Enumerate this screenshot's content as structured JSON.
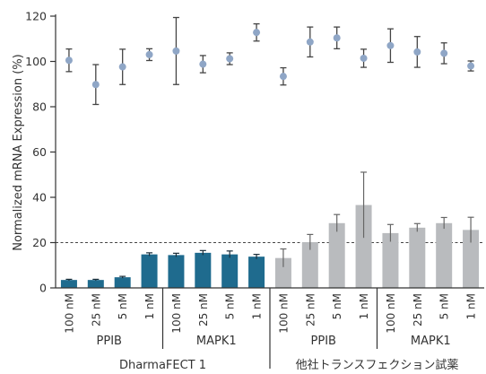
{
  "chart_data": {
    "type": "bar",
    "ylabel": "Normalized mRNA Expression (%)",
    "ylim": [
      0,
      120
    ],
    "yticks": [
      0,
      20,
      40,
      60,
      80,
      100,
      120
    ],
    "reference_line": 20,
    "grid": false,
    "colors": {
      "dharmafect_bar": "#1f6b8e",
      "other_bar": "#b9bbbe",
      "point": "#8fa6c6",
      "error": "#444444",
      "axis": "#333333"
    },
    "categories": [
      "100 nM",
      "25 nM",
      "5 nM",
      "1 nM",
      "100 nM",
      "25 nM",
      "5 nM",
      "1 nM",
      "100 nM",
      "25 nM",
      "5 nM",
      "1 nM",
      "100 nM",
      "25 nM",
      "5 nM",
      "1 nM"
    ],
    "bars": {
      "values": [
        3.5,
        3.5,
        4.7,
        14.8,
        14.5,
        15.5,
        14.8,
        13.8,
        13.2,
        20.2,
        28.6,
        36.6,
        24.2,
        26.6,
        28.6,
        25.6
      ],
      "errors": [
        0.3,
        0.3,
        0.4,
        0.7,
        0.8,
        1.0,
        1.5,
        1.0,
        4.0,
        3.4,
        3.8,
        14.5,
        3.8,
        1.8,
        2.5,
        5.6
      ],
      "colors": [
        "dharmafect",
        "dharmafect",
        "dharmafect",
        "dharmafect",
        "dharmafect",
        "dharmafect",
        "dharmafect",
        "dharmafect",
        "other",
        "other",
        "other",
        "other",
        "other",
        "other",
        "other",
        "other"
      ]
    },
    "points": {
      "values": [
        100.5,
        89.8,
        97.6,
        103.0,
        104.6,
        98.8,
        101.2,
        112.8,
        93.4,
        108.6,
        110.4,
        101.4,
        107.0,
        104.2,
        103.6,
        98.0
      ],
      "errors": [
        5.0,
        8.8,
        7.8,
        2.6,
        14.8,
        3.8,
        2.6,
        3.8,
        3.8,
        6.6,
        4.8,
        4.0,
        7.4,
        6.8,
        4.6,
        2.2
      ]
    },
    "subgroups": [
      "PPIB",
      "MAPK1",
      "PPIB",
      "MAPK1"
    ],
    "groups": [
      "DharmaFECT 1",
      "他社トランスフェクション試薬"
    ]
  }
}
